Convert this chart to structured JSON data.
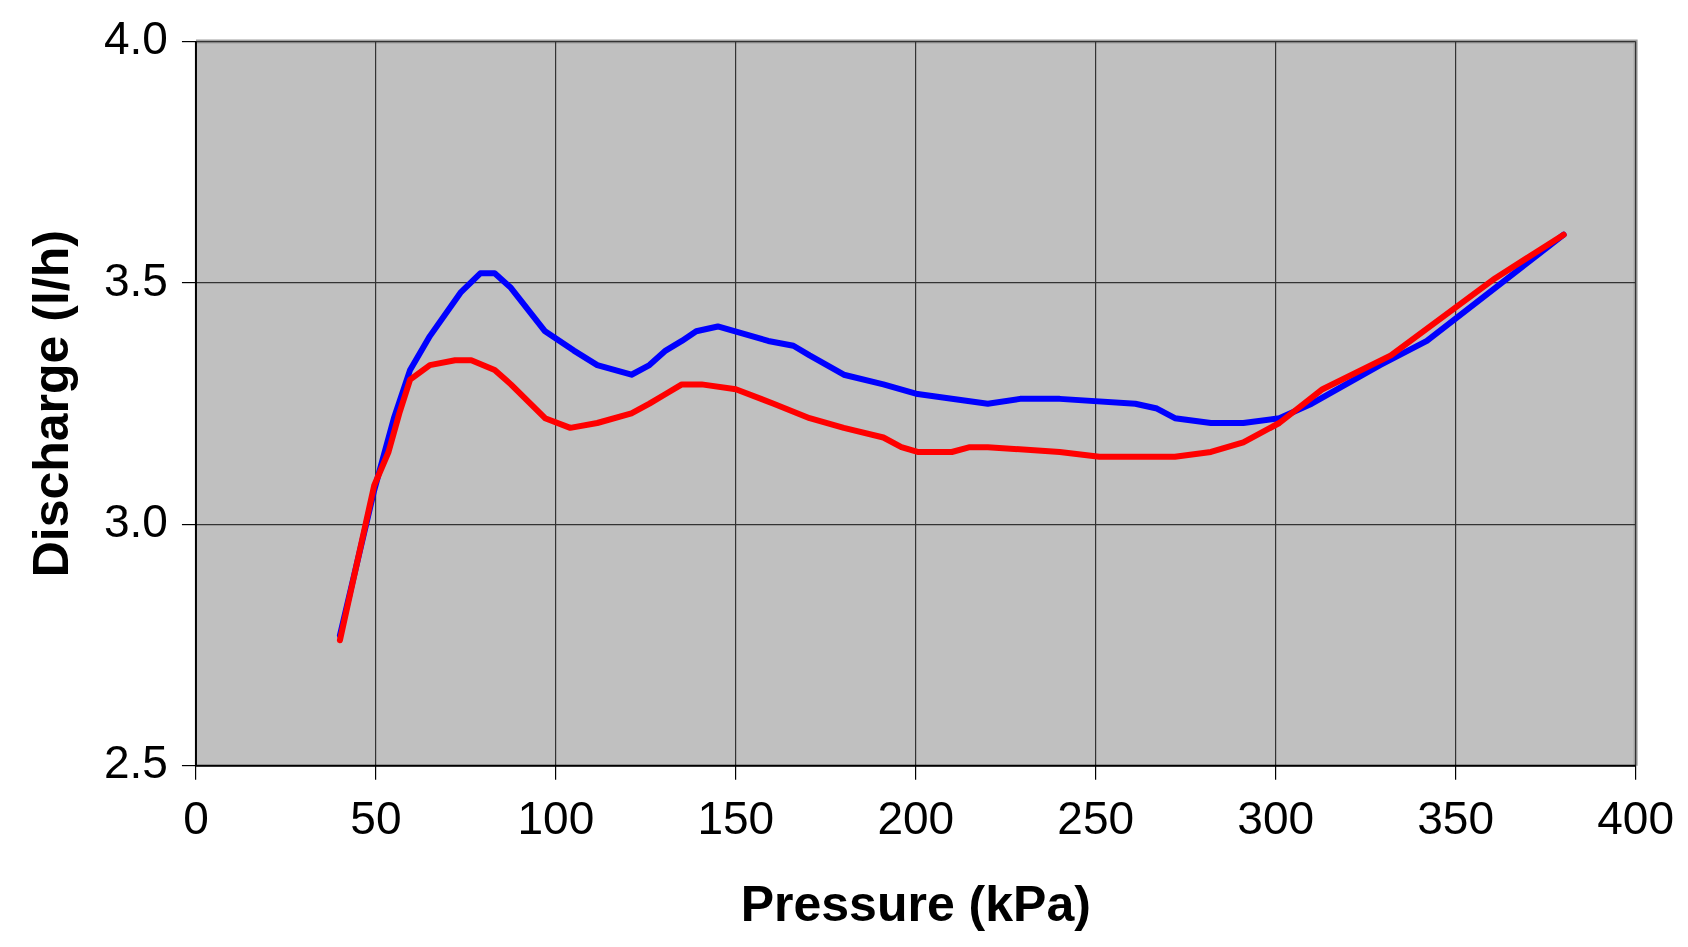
{
  "chart_data": {
    "type": "line",
    "xlabel": "Pressure (kPa)",
    "ylabel": "Discharge (l/h)",
    "xlim": [
      0,
      400
    ],
    "ylim": [
      2.5,
      4.0
    ],
    "xticks": [
      0,
      50,
      100,
      150,
      200,
      250,
      300,
      350,
      400
    ],
    "yticks": [
      {
        "value": 2.5,
        "label": "2.5"
      },
      {
        "value": 3.0,
        "label": "3.0"
      },
      {
        "value": 3.5,
        "label": "3.5"
      },
      {
        "value": 4.0,
        "label": "4.0"
      }
    ],
    "grid": true,
    "legend": false,
    "series": [
      {
        "color": "#0000ff",
        "x": [
          40,
          49.5,
          55,
          59.5,
          65,
          73.5,
          79,
          83,
          87.5,
          97,
          105,
          111.5,
          121,
          126,
          130.5,
          135,
          139,
          145,
          159,
          166,
          170.5,
          180,
          191,
          200.5,
          220,
          229,
          240,
          261,
          267,
          272,
          282,
          291,
          301,
          310,
          329,
          342,
          361,
          380
        ],
        "values": [
          2.77,
          3.07,
          3.22,
          3.32,
          3.39,
          3.48,
          3.52,
          3.52,
          3.49,
          3.4,
          3.36,
          3.33,
          3.31,
          3.33,
          3.36,
          3.38,
          3.4,
          3.41,
          3.38,
          3.37,
          3.35,
          3.31,
          3.29,
          3.27,
          3.25,
          3.26,
          3.26,
          3.25,
          3.24,
          3.22,
          3.21,
          3.21,
          3.22,
          3.25,
          3.33,
          3.38,
          3.49,
          3.6
        ]
      },
      {
        "color": "#ff0000",
        "x": [
          40,
          49.5,
          53.5,
          56.5,
          59.5,
          65,
          72,
          76.5,
          83,
          87.5,
          97,
          104,
          111.5,
          121,
          126,
          130.5,
          135,
          140.5,
          150,
          160.5,
          170.5,
          180,
          191,
          196,
          200.5,
          210,
          215,
          220,
          240,
          251,
          272,
          282,
          291,
          301,
          313,
          332,
          361,
          380
        ],
        "values": [
          2.76,
          3.08,
          3.15,
          3.23,
          3.3,
          3.33,
          3.34,
          3.34,
          3.32,
          3.29,
          3.22,
          3.2,
          3.21,
          3.23,
          3.25,
          3.27,
          3.29,
          3.29,
          3.28,
          3.25,
          3.22,
          3.2,
          3.18,
          3.16,
          3.15,
          3.15,
          3.16,
          3.16,
          3.15,
          3.14,
          3.14,
          3.15,
          3.17,
          3.21,
          3.28,
          3.35,
          3.51,
          3.6
        ]
      }
    ]
  }
}
